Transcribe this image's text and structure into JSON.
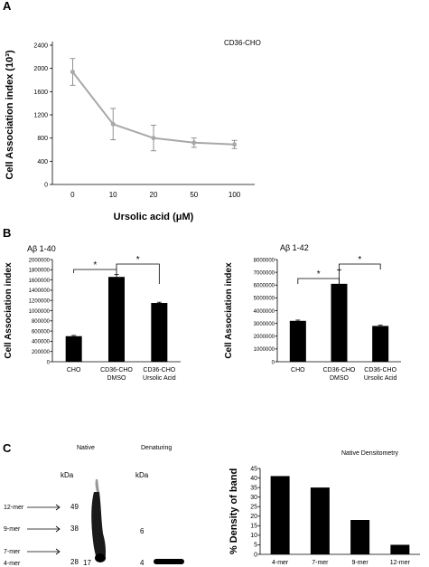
{
  "panels": {
    "A": {
      "letter": "A"
    },
    "B": {
      "letter": "B"
    },
    "C": {
      "letter": "C"
    }
  },
  "chart_data": [
    {
      "id": "A",
      "type": "line",
      "annotation": "CD36-CHO",
      "ylabel": "Cell Association index (10³)",
      "xlabel": "Ursolic acid (μM)",
      "categories": [
        "0",
        "10",
        "20",
        "50",
        "100"
      ],
      "values": [
        1940,
        1040,
        800,
        720,
        690
      ],
      "errors": [
        230,
        270,
        220,
        80,
        70
      ],
      "ylim": [
        0,
        2400
      ],
      "yticks": [
        0,
        400,
        800,
        1200,
        1600,
        2000,
        2400
      ],
      "color": "#a8a8a8"
    },
    {
      "id": "B1",
      "type": "bar",
      "title": "Aβ 1-40",
      "ylabel": "Cell Association index",
      "categories": [
        [
          "CHO"
        ],
        [
          "CD36-CHO",
          "DMSO"
        ],
        [
          "CD36-CHO",
          "Ursolic Acid"
        ]
      ],
      "values": [
        500000,
        1660000,
        1150000
      ],
      "errors": [
        15000,
        45000,
        15000
      ],
      "ylim": [
        0,
        2000000
      ],
      "yticks": [
        0,
        200000,
        400000,
        600000,
        800000,
        1000000,
        1200000,
        1400000,
        1600000,
        1800000,
        2000000
      ],
      "significance": [
        {
          "from": 0,
          "to": 1,
          "label": "*"
        },
        {
          "from": 1,
          "to": 2,
          "label": "*"
        }
      ]
    },
    {
      "id": "B2",
      "type": "bar",
      "title": "Aβ 1-42",
      "ylabel": "Cell Association index",
      "categories": [
        [
          "CHO"
        ],
        [
          "CD36-CHO",
          "DMSO"
        ],
        [
          "CD36-CHO",
          "Ursolic Acid"
        ]
      ],
      "values": [
        3200000,
        6100000,
        2800000
      ],
      "errors": [
        60000,
        1100000,
        60000
      ],
      "ylim": [
        0,
        8000000
      ],
      "yticks": [
        0,
        1000000,
        2000000,
        3000000,
        4000000,
        5000000,
        6000000,
        7000000,
        8000000
      ],
      "significance": [
        {
          "from": 0,
          "to": 1,
          "label": "*"
        },
        {
          "from": 1,
          "to": 2,
          "label": "*"
        }
      ]
    },
    {
      "id": "C2",
      "type": "bar",
      "title": "Native Densitometry",
      "ylabel": "% Density of band",
      "categories": [
        "4-mer",
        "7-mer",
        "9-mer",
        "12-mer"
      ],
      "values": [
        41,
        35,
        18,
        5
      ],
      "ylim": [
        0,
        45
      ],
      "yticks": [
        0,
        5,
        10,
        15,
        20,
        25,
        30,
        35,
        40,
        45
      ]
    }
  ],
  "gel": {
    "native_label": "Native",
    "denaturing_label": "Denaturing",
    "kda_left": "kDa",
    "kda_right": "kDa",
    "oligomers": [
      {
        "label": "12-mer",
        "kda": "49"
      },
      {
        "label": "9-mer",
        "kda": "38"
      },
      {
        "label": "7-mer",
        "kda": "28"
      },
      {
        "label": "4-mer",
        "kda": "17"
      }
    ],
    "denaturing_kda": [
      "6",
      "4"
    ]
  }
}
